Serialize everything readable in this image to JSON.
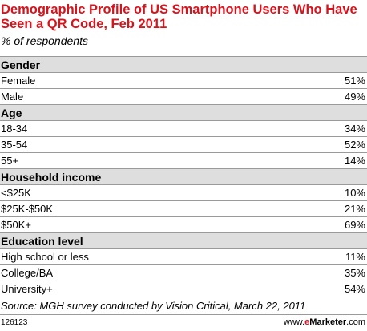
{
  "chart_data": {
    "type": "table",
    "title": "Demographic Profile of US Smartphone Users Who Have Seen a QR Code, Feb 2011",
    "subtitle": "% of respondents",
    "sections": [
      {
        "header": "Gender",
        "rows": [
          {
            "label": "Female",
            "value": "51%"
          },
          {
            "label": "Male",
            "value": "49%"
          }
        ]
      },
      {
        "header": "Age",
        "rows": [
          {
            "label": "18-34",
            "value": "34%"
          },
          {
            "label": "35-54",
            "value": "52%"
          },
          {
            "label": "55+",
            "value": "14%"
          }
        ]
      },
      {
        "header": "Household income",
        "rows": [
          {
            "label": "<$25K",
            "value": "10%"
          },
          {
            "label": "$25K-$50K",
            "value": "21%"
          },
          {
            "label": "$50K+",
            "value": "69%"
          }
        ]
      },
      {
        "header": "Education level",
        "rows": [
          {
            "label": "High school or less",
            "value": "11%"
          },
          {
            "label": "College/BA",
            "value": "35%"
          },
          {
            "label": "University+",
            "value": "54%"
          }
        ]
      }
    ],
    "source": "Source: MGH survey conducted by Vision Critical, March 22, 2011"
  },
  "footer": {
    "chart_id": "126123",
    "brand_prefix": "www.",
    "brand_e": "e",
    "brand_name": "Marketer",
    "brand_suffix": ".com"
  },
  "colors": {
    "title": "#d7131c",
    "section_bg": "#dedede",
    "rule": "#9a9a9a"
  }
}
